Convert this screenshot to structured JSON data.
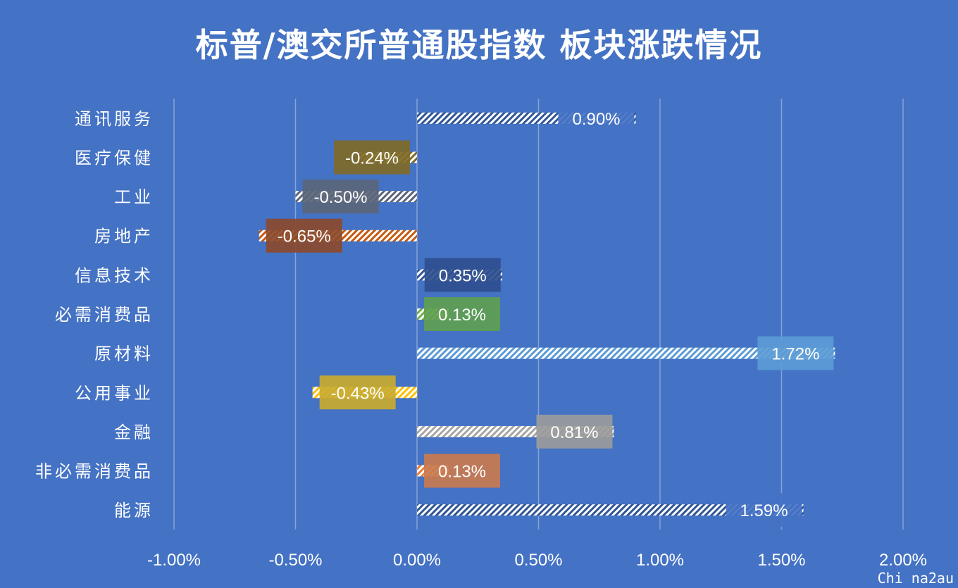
{
  "title": "标普/澳交所普通股指数 板块涨跌情况",
  "watermark": "Chi na2au",
  "chart_data": {
    "type": "bar",
    "orientation": "horizontal",
    "title": "标普/澳交所普通股指数 板块涨跌情况",
    "categories": [
      "通讯服务",
      "医疗保健",
      "工业",
      "房地产",
      "信息技术",
      "必需消费品",
      "原材料",
      "公用事业",
      "金融",
      "非必需消费品",
      "能源"
    ],
    "values": [
      0.9,
      -0.24,
      -0.5,
      -0.65,
      0.35,
      0.13,
      1.72,
      -0.43,
      0.81,
      0.13,
      1.59
    ],
    "data_labels": [
      "0.90%",
      "-0.24%",
      "-0.50%",
      "-0.65%",
      "0.35%",
      "0.13%",
      "1.72%",
      "-0.43%",
      "0.81%",
      "0.13%",
      "1.59%"
    ],
    "label_colors": [
      "#4472C4",
      "#7F6A28",
      "#5A6579",
      "#8B4A2C",
      "#2F4F8F",
      "#5E9E4F",
      "#5B9BD5",
      "#C9AA2E",
      "#9A9A9A",
      "#C97A4F",
      "#4472C4"
    ],
    "bar_pattern_colors": [
      "#2F5597",
      "#7F6A28",
      "#5A6579",
      "#C55A11",
      "#2F5597",
      "#70AD47",
      "#5B9BD5",
      "#FFC000",
      "#A5A5A5",
      "#ED7D31",
      "#2F5597"
    ],
    "xlim": [
      -1.0,
      2.0
    ],
    "xticks": [
      -1.0,
      -0.5,
      0.0,
      0.5,
      1.0,
      1.5,
      2.0
    ],
    "xtick_labels": [
      "-1.00%",
      "-0.50%",
      "0.00%",
      "0.50%",
      "1.00%",
      "1.50%",
      "2.00%"
    ],
    "grid": "vertical",
    "xlabel": "",
    "ylabel": ""
  }
}
